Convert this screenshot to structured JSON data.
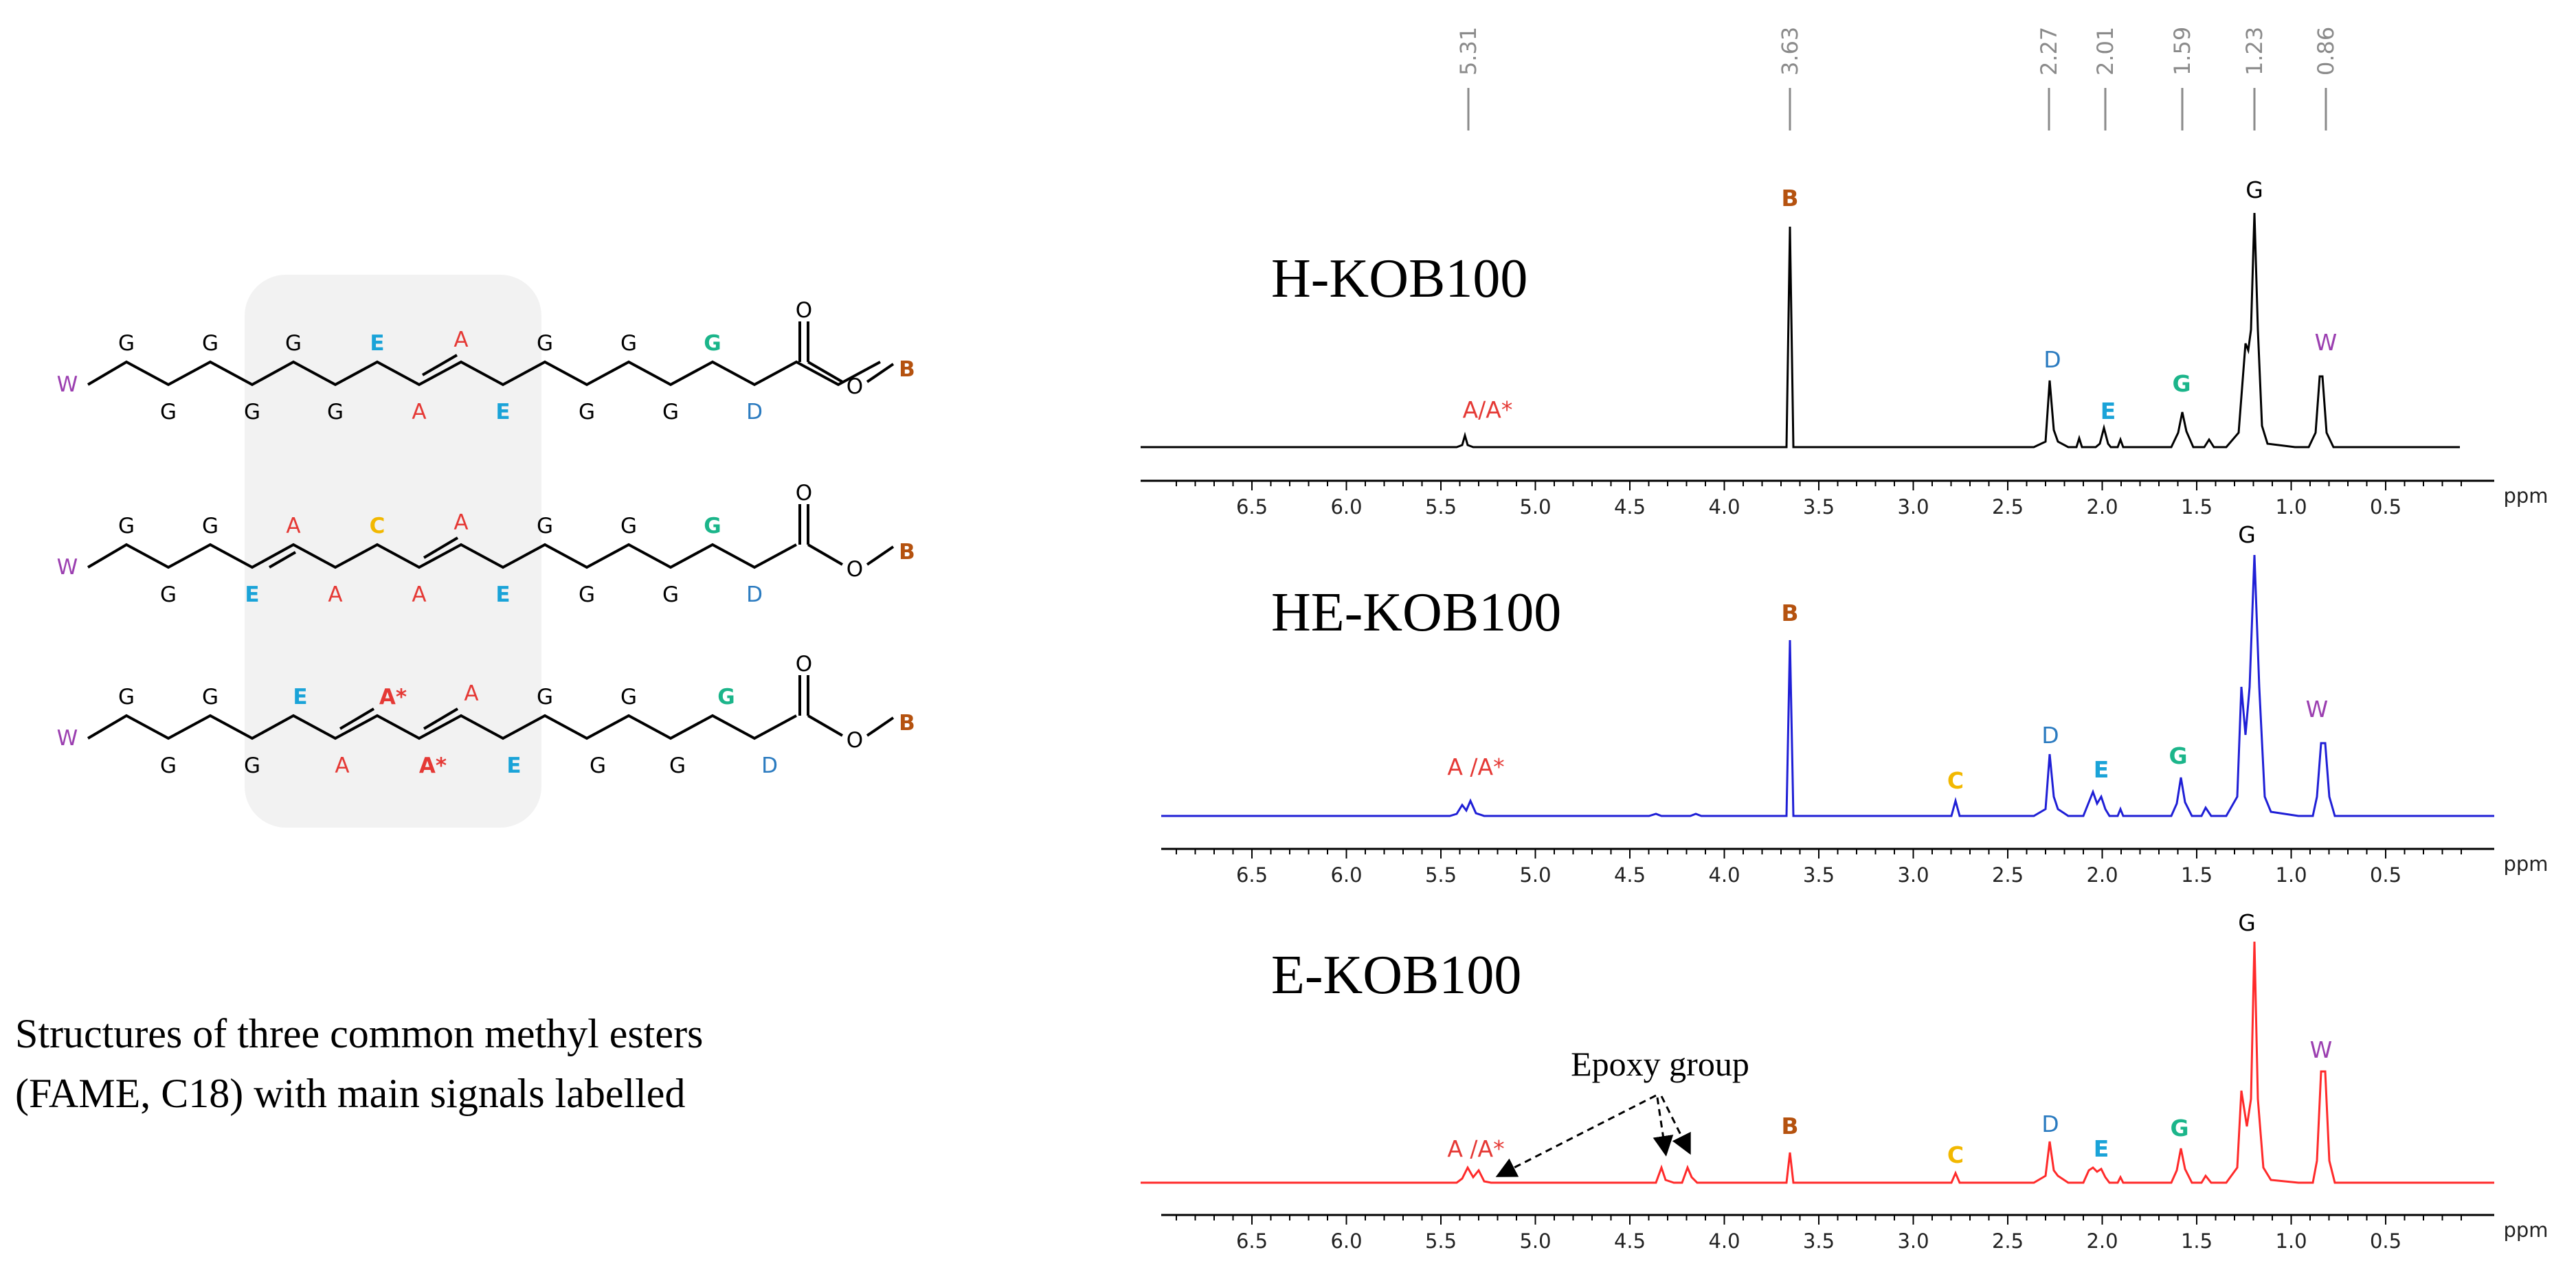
{
  "colors": {
    "W": "#9b3fb0",
    "G": "#000000",
    "E": "#1aa3d8",
    "A": "#e53935",
    "C": "#f2b800",
    "D": "#2b7bc0",
    "B": "#b5520f",
    "spectrum_h": "#000000",
    "spectrum_he": "#1f1fd6",
    "spectrum_e": "#ff2a2a",
    "highlight_box": "#f2f2f2",
    "shift_marker": "#8a8a8a"
  },
  "top_shift_labels": [
    "5.31",
    "3.63",
    "2.27",
    "2.01",
    "1.59",
    "1.23",
    "0.86"
  ],
  "structures": [
    {
      "id": "structure-1",
      "labels": {
        "w": "W",
        "g": "G",
        "e_upper": "E",
        "a_upper": "A",
        "a_lower": "A",
        "e_lower": "E",
        "g_teal": "G",
        "d": "D",
        "o": "O",
        "b": "B"
      }
    },
    {
      "id": "structure-2",
      "labels": {
        "w": "W",
        "g": "G",
        "e_lower_left": "E",
        "a": "A",
        "c": "C",
        "e_lower_right": "E",
        "g_teal": "G",
        "d": "D",
        "o": "O",
        "b": "B"
      }
    },
    {
      "id": "structure-3",
      "labels": {
        "w": "W",
        "g": "G",
        "e_upper": "E",
        "a_star": "A*",
        "a": "A",
        "e_lower": "E",
        "g_teal": "G",
        "d": "D",
        "o": "O",
        "b": "B"
      }
    }
  ],
  "caption": {
    "line1": "Structures of three common methyl esters",
    "line2": "(FAME, C18) with main signals labelled"
  },
  "spectra": [
    {
      "id": "h-kob100",
      "name": "H-KOB100",
      "peak_labels": {
        "aa_star": "A/A*",
        "b": "B",
        "d": "D",
        "e": "E",
        "g_teal": "G",
        "g": "G",
        "w": "W"
      }
    },
    {
      "id": "he-kob100",
      "name": "HE-KOB100",
      "peak_labels": {
        "aa_star": "A /A*",
        "b": "B",
        "c": "C",
        "d": "D",
        "e": "E",
        "g_teal": "G",
        "g": "G",
        "w": "W"
      }
    },
    {
      "id": "e-kob100",
      "name": "E-KOB100",
      "peak_labels": {
        "aa_star": "A /A*",
        "b": "B",
        "c": "C",
        "d": "D",
        "e": "E",
        "g_teal": "G",
        "g": "G",
        "w": "W"
      },
      "annotation": "Epoxy group"
    }
  ],
  "axis": {
    "ticks": [
      "6.5",
      "6.0",
      "5.5",
      "5.0",
      "4.5",
      "4.0",
      "3.5",
      "3.0",
      "2.5",
      "2.0",
      "1.5",
      "1.0",
      "0.5"
    ],
    "unit": "ppm"
  }
}
